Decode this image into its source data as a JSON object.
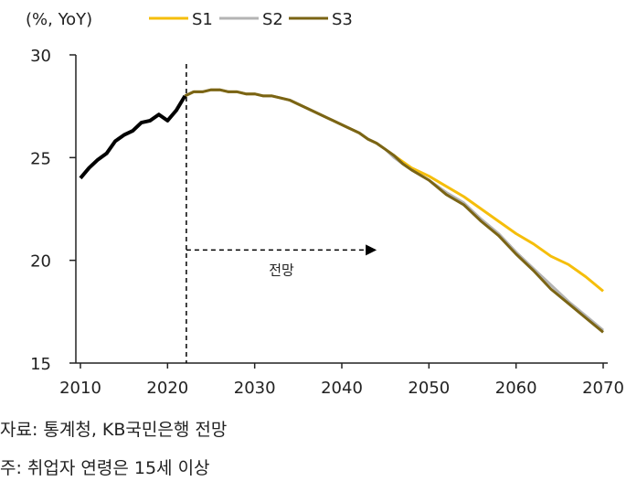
{
  "chart_data": {
    "type": "line",
    "unit_label": "(%, YoY)",
    "xlim": [
      2010,
      2070
    ],
    "ylim": [
      15,
      30
    ],
    "x_ticks": [
      2010,
      2020,
      2030,
      2040,
      2050,
      2060,
      2070
    ],
    "y_ticks": [
      15,
      20,
      25,
      30
    ],
    "grid": false,
    "legend_placement": "top",
    "forecast_start": 2022,
    "forecast_label": "전망",
    "forecast_arrow_y": 20.5,
    "forecast_arrow_end": 2044,
    "historical": {
      "color": "#000000",
      "x": [
        2010,
        2011,
        2012,
        2013,
        2014,
        2015,
        2016,
        2017,
        2018,
        2019,
        2020,
        2021,
        2022
      ],
      "y": [
        24.0,
        24.5,
        24.9,
        25.2,
        25.8,
        26.1,
        26.3,
        26.7,
        26.8,
        27.1,
        26.8,
        27.3,
        28.0
      ]
    },
    "series": [
      {
        "name": "S1",
        "color": "#F5BE0B",
        "x": [
          2022,
          2023,
          2024,
          2025,
          2026,
          2027,
          2028,
          2029,
          2030,
          2031,
          2032,
          2033,
          2034,
          2035,
          2036,
          2037,
          2038,
          2039,
          2040,
          2041,
          2042,
          2043,
          2044,
          2045,
          2046,
          2047,
          2048,
          2050,
          2052,
          2054,
          2056,
          2058,
          2060,
          2062,
          2064,
          2065,
          2066,
          2068,
          2070
        ],
        "y": [
          28.0,
          28.2,
          28.2,
          28.3,
          28.3,
          28.2,
          28.2,
          28.1,
          28.1,
          28.0,
          28.0,
          27.9,
          27.8,
          27.6,
          27.4,
          27.2,
          27.0,
          26.8,
          26.6,
          26.4,
          26.2,
          25.9,
          25.7,
          25.4,
          25.1,
          24.8,
          24.5,
          24.1,
          23.6,
          23.1,
          22.5,
          21.9,
          21.3,
          20.8,
          20.2,
          20.0,
          19.8,
          19.2,
          18.5
        ]
      },
      {
        "name": "S2",
        "color": "#B4B4B4",
        "x": [
          2022,
          2023,
          2024,
          2025,
          2026,
          2027,
          2028,
          2029,
          2030,
          2031,
          2032,
          2033,
          2034,
          2035,
          2036,
          2037,
          2038,
          2039,
          2040,
          2041,
          2042,
          2043,
          2044,
          2045,
          2046,
          2047,
          2048,
          2050,
          2052,
          2054,
          2056,
          2058,
          2060,
          2062,
          2064,
          2066,
          2068,
          2070
        ],
        "y": [
          28.0,
          28.2,
          28.2,
          28.3,
          28.3,
          28.2,
          28.2,
          28.1,
          28.1,
          28.0,
          28.0,
          27.9,
          27.8,
          27.6,
          27.4,
          27.2,
          27.0,
          26.8,
          26.6,
          26.4,
          26.2,
          25.9,
          25.7,
          25.4,
          25.0,
          24.7,
          24.4,
          23.9,
          23.3,
          22.8,
          22.0,
          21.3,
          20.4,
          19.6,
          18.8,
          18.0,
          17.3,
          16.6
        ]
      },
      {
        "name": "S3",
        "color": "#7A6414",
        "x": [
          2022,
          2023,
          2024,
          2025,
          2026,
          2027,
          2028,
          2029,
          2030,
          2031,
          2032,
          2033,
          2034,
          2035,
          2036,
          2037,
          2038,
          2039,
          2040,
          2041,
          2042,
          2043,
          2044,
          2045,
          2046,
          2047,
          2048,
          2050,
          2052,
          2054,
          2056,
          2058,
          2060,
          2062,
          2064,
          2066,
          2068,
          2070
        ],
        "y": [
          28.0,
          28.2,
          28.2,
          28.3,
          28.3,
          28.2,
          28.2,
          28.1,
          28.1,
          28.0,
          28.0,
          27.9,
          27.8,
          27.6,
          27.4,
          27.2,
          27.0,
          26.8,
          26.6,
          26.4,
          26.2,
          25.9,
          25.7,
          25.4,
          25.1,
          24.7,
          24.4,
          23.9,
          23.2,
          22.7,
          21.9,
          21.2,
          20.3,
          19.5,
          18.6,
          17.9,
          17.2,
          16.5
        ]
      }
    ]
  },
  "notes": {
    "source": "자료: 통계청, KB국민은행 전망",
    "footnote": "주: 취업자 연령은 15세 이상"
  }
}
